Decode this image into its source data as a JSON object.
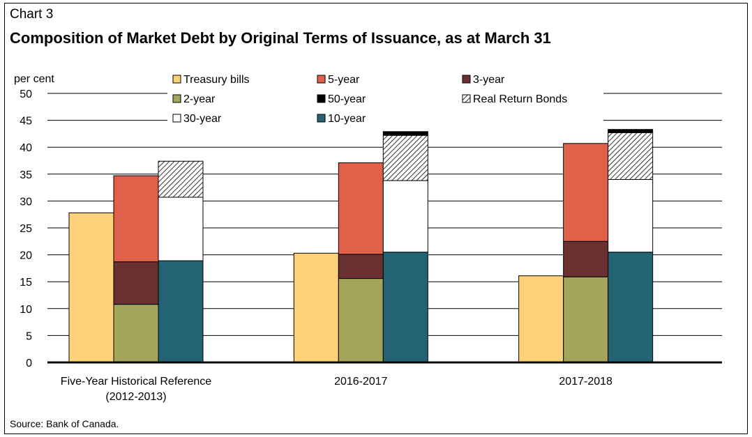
{
  "header": {
    "chart_number": "Chart 3",
    "title": "Composition of Market Debt by Original Terms of Issuance, as at March 31"
  },
  "footer": {
    "source": "Source: Bank of Canada."
  },
  "colors": {
    "Treasury bills": "#FFD27A",
    "5-year": "#E0604A",
    "3-year": "#6B3130",
    "2-year": "#A2A55B",
    "50-year": "#000000",
    "Real Return Bonds": "pattern-diagonal-hatch",
    "30-year": "#FFFFFF",
    "10-year": "#246374"
  },
  "chart_data": {
    "type": "bar",
    "title": "Composition of Market Debt by Original Terms of Issuance, as at March 31",
    "ylabel": "per cent",
    "xlabel": "",
    "ylim": [
      0,
      50
    ],
    "yticks": [
      0,
      5,
      10,
      15,
      20,
      25,
      30,
      35,
      40,
      45,
      50
    ],
    "grid": true,
    "legend_position": "top",
    "categories": [
      "Five-Year Historical Reference (2012-2013)",
      "2016-2017",
      "2017-2018"
    ],
    "category_label_lines": [
      [
        "Five-Year Historical Reference",
        "(2012-2013)"
      ],
      [
        "2016-2017"
      ],
      [
        "2017-2018"
      ]
    ],
    "legend": [
      "Treasury bills",
      "5-year",
      "3-year",
      "2-year",
      "50-year",
      "Real Return Bonds",
      "30-year",
      "10-year"
    ],
    "stacks": [
      {
        "position": 0,
        "series": [
          "Treasury bills"
        ]
      },
      {
        "position": 1,
        "series": [
          "2-year",
          "3-year",
          "5-year"
        ]
      },
      {
        "position": 2,
        "series": [
          "10-year",
          "30-year",
          "Real Return Bonds",
          "50-year"
        ]
      }
    ],
    "series": [
      {
        "name": "Treasury bills",
        "values": [
          27.8,
          20.3,
          16.1
        ]
      },
      {
        "name": "2-year",
        "values": [
          10.8,
          15.6,
          15.9
        ]
      },
      {
        "name": "3-year",
        "values": [
          7.9,
          4.5,
          6.6
        ]
      },
      {
        "name": "5-year",
        "values": [
          16.0,
          17.0,
          18.2
        ]
      },
      {
        "name": "10-year",
        "values": [
          18.9,
          20.5,
          20.5
        ]
      },
      {
        "name": "30-year",
        "values": [
          11.8,
          13.3,
          13.5
        ]
      },
      {
        "name": "Real Return Bonds",
        "values": [
          6.7,
          8.4,
          8.7
        ]
      },
      {
        "name": "50-year",
        "values": [
          0.0,
          0.7,
          0.6
        ]
      }
    ]
  }
}
